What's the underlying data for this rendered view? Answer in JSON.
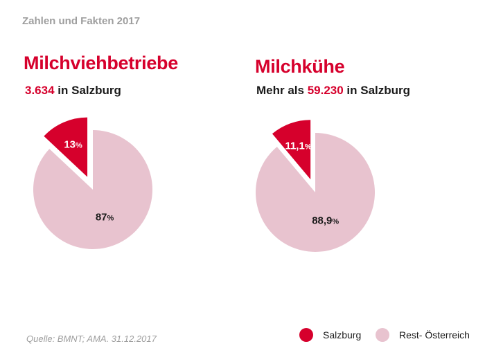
{
  "header": "Zahlen und Fakten 2017",
  "colors": {
    "salzburg": "#d6002c",
    "rest": "#e8c3cf"
  },
  "chart_data": [
    {
      "type": "pie",
      "title": "Milchviehbetriebe",
      "subtitle_value": "3.634",
      "subtitle_suffix": " in Salzburg",
      "slices": [
        {
          "label": "Salzburg",
          "value": 13,
          "display": "13",
          "unit": "%",
          "exploded": true
        },
        {
          "label": "Rest- Österreich",
          "value": 87,
          "display": "87",
          "unit": "%",
          "exploded": false
        }
      ]
    },
    {
      "type": "pie",
      "title": "Milchkühe",
      "subtitle_prefix": "Mehr als ",
      "subtitle_value": "59.230",
      "subtitle_suffix": " in Salzburg",
      "slices": [
        {
          "label": "Salzburg",
          "value": 11.1,
          "display": "11,1",
          "unit": "%",
          "exploded": true
        },
        {
          "label": "Rest- Österreich",
          "value": 88.9,
          "display": "88,9",
          "unit": "%",
          "exploded": false
        }
      ]
    }
  ],
  "source": "Quelle: BMNT; AMA. 31.12.2017",
  "legend": [
    {
      "label": "Salzburg",
      "color": "#d6002c"
    },
    {
      "label": "Rest- Österreich",
      "color": "#e8c3cf"
    }
  ]
}
